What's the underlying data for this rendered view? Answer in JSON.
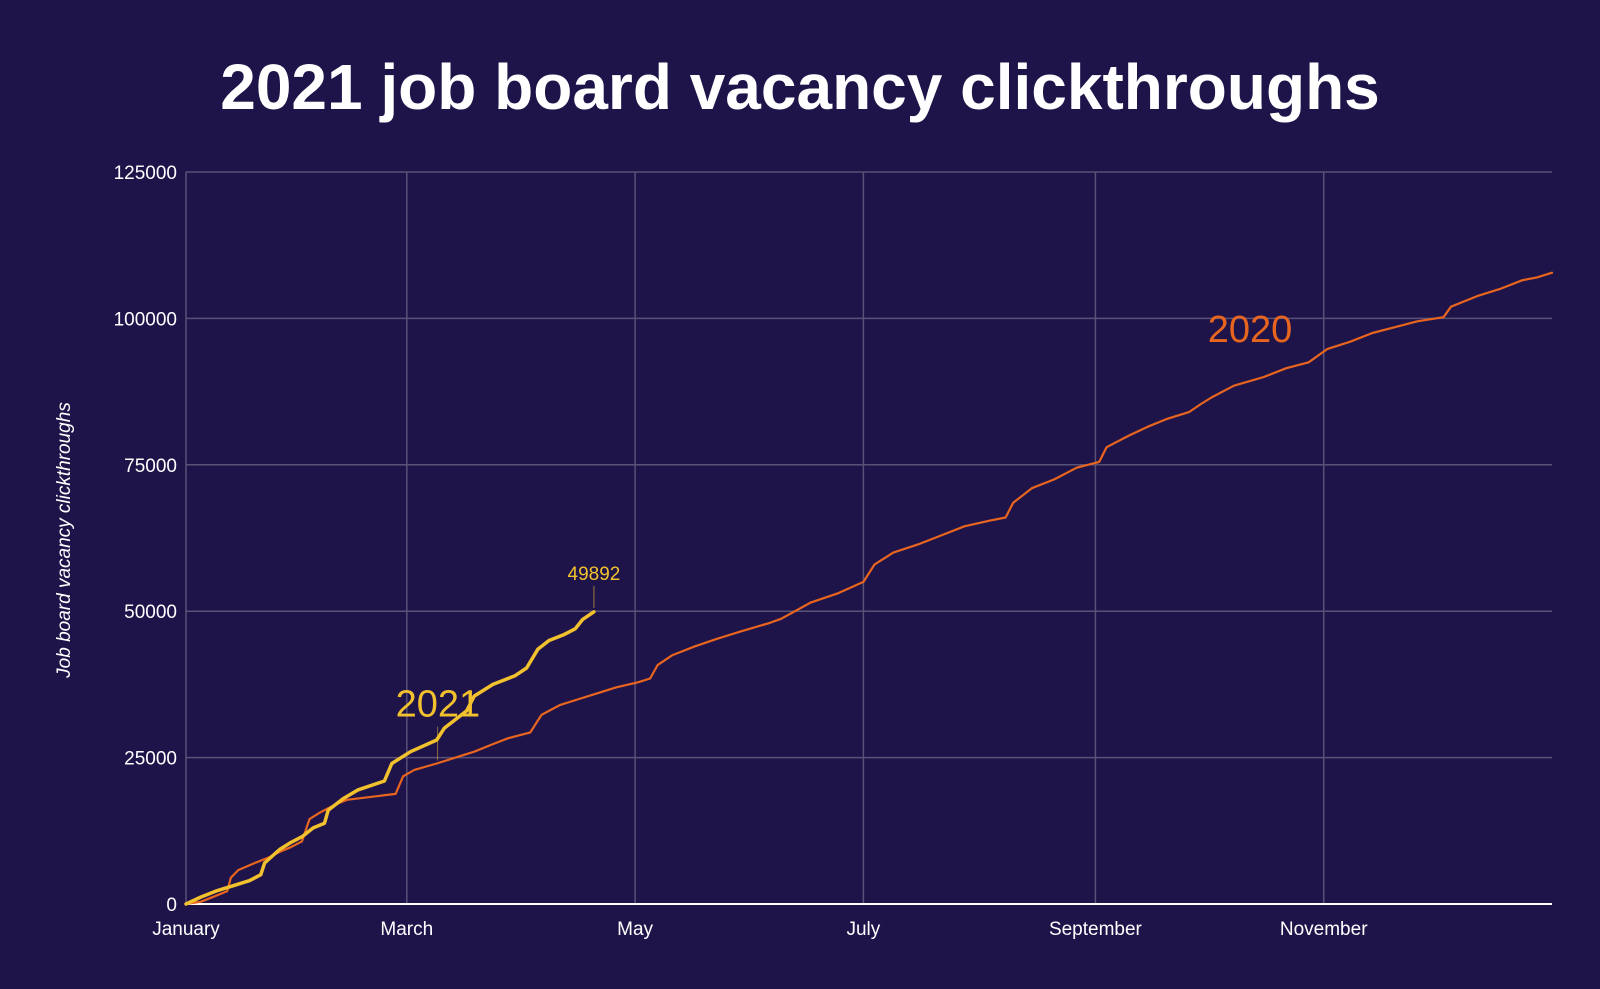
{
  "chart_data": {
    "type": "line",
    "title": "2021 job board vacancy clickthroughs",
    "ylabel": "Job board vacancy clickthroughs",
    "xlabel": "",
    "ylim": [
      0,
      125000
    ],
    "yticks": [
      0,
      25000,
      50000,
      75000,
      100000,
      125000
    ],
    "x_domain_days": [
      0,
      365
    ],
    "xticks": [
      {
        "day": 0,
        "label": "January"
      },
      {
        "day": 59,
        "label": "March"
      },
      {
        "day": 120,
        "label": "May"
      },
      {
        "day": 181,
        "label": "July"
      },
      {
        "day": 243,
        "label": "September"
      },
      {
        "day": 304,
        "label": "November"
      }
    ],
    "grid": true,
    "legend": "inline labels",
    "series": [
      {
        "name": "2020",
        "color": "#e8651f",
        "label_position_day": 273,
        "label_position_value": 96000,
        "points": [
          [
            0,
            0
          ],
          [
            4,
            400
          ],
          [
            8,
            1400
          ],
          [
            11,
            2200
          ],
          [
            12,
            4500
          ],
          [
            14,
            5800
          ],
          [
            18,
            6900
          ],
          [
            22,
            7900
          ],
          [
            25,
            8900
          ],
          [
            28,
            9700
          ],
          [
            31,
            10700
          ],
          [
            33,
            14500
          ],
          [
            36,
            15700
          ],
          [
            40,
            17000
          ],
          [
            43,
            17800
          ],
          [
            56,
            18800
          ],
          [
            58,
            21800
          ],
          [
            61,
            22900
          ],
          [
            67,
            24000
          ],
          [
            72,
            25000
          ],
          [
            77,
            26000
          ],
          [
            82,
            27300
          ],
          [
            86,
            28300
          ],
          [
            92,
            29300
          ],
          [
            95,
            32300
          ],
          [
            100,
            34000
          ],
          [
            105,
            35000
          ],
          [
            110,
            36000
          ],
          [
            115,
            37000
          ],
          [
            121,
            37900
          ],
          [
            124,
            38500
          ],
          [
            126,
            40800
          ],
          [
            130,
            42500
          ],
          [
            136,
            44000
          ],
          [
            142,
            45300
          ],
          [
            148,
            46500
          ],
          [
            156,
            48000
          ],
          [
            159,
            48700
          ],
          [
            167,
            51500
          ],
          [
            174,
            53000
          ],
          [
            181,
            55000
          ],
          [
            184,
            58000
          ],
          [
            189,
            60000
          ],
          [
            196,
            61500
          ],
          [
            202,
            63000
          ],
          [
            208,
            64500
          ],
          [
            215,
            65500
          ],
          [
            219,
            66000
          ],
          [
            221,
            68500
          ],
          [
            226,
            71000
          ],
          [
            232,
            72500
          ],
          [
            238,
            74500
          ],
          [
            244,
            75500
          ],
          [
            246,
            78000
          ],
          [
            252,
            80000
          ],
          [
            257,
            81500
          ],
          [
            262,
            82800
          ],
          [
            268,
            84000
          ],
          [
            271,
            85300
          ],
          [
            274,
            86500
          ],
          [
            280,
            88500
          ],
          [
            288,
            90000
          ],
          [
            294,
            91500
          ],
          [
            300,
            92500
          ],
          [
            305,
            94800
          ],
          [
            311,
            96000
          ],
          [
            317,
            97500
          ],
          [
            323,
            98500
          ],
          [
            329,
            99500
          ],
          [
            336,
            100200
          ],
          [
            338,
            102000
          ],
          [
            345,
            103800
          ],
          [
            351,
            105000
          ],
          [
            357,
            106500
          ],
          [
            361,
            107000
          ],
          [
            365,
            107800
          ]
        ]
      },
      {
        "name": "2021",
        "color": "#f2c12e",
        "label_position_day": 56,
        "label_position_value": 32000,
        "end_label": "49892",
        "points": [
          [
            0,
            0
          ],
          [
            4,
            1200
          ],
          [
            8,
            2200
          ],
          [
            12,
            3000
          ],
          [
            17,
            4000
          ],
          [
            20,
            5000
          ],
          [
            21,
            7000
          ],
          [
            25,
            9300
          ],
          [
            28,
            10500
          ],
          [
            31,
            11500
          ],
          [
            34,
            13000
          ],
          [
            37,
            13800
          ],
          [
            38,
            16000
          ],
          [
            42,
            18000
          ],
          [
            46,
            19500
          ],
          [
            53,
            21000
          ],
          [
            55,
            24000
          ],
          [
            60,
            26000
          ],
          [
            67,
            28000
          ],
          [
            69,
            30000
          ],
          [
            75,
            33000
          ],
          [
            77,
            35500
          ],
          [
            82,
            37500
          ],
          [
            88,
            39000
          ],
          [
            91,
            40300
          ],
          [
            94,
            43500
          ],
          [
            97,
            45000
          ],
          [
            101,
            46000
          ],
          [
            104,
            47000
          ],
          [
            106,
            48600
          ],
          [
            109,
            49892
          ]
        ]
      }
    ]
  }
}
